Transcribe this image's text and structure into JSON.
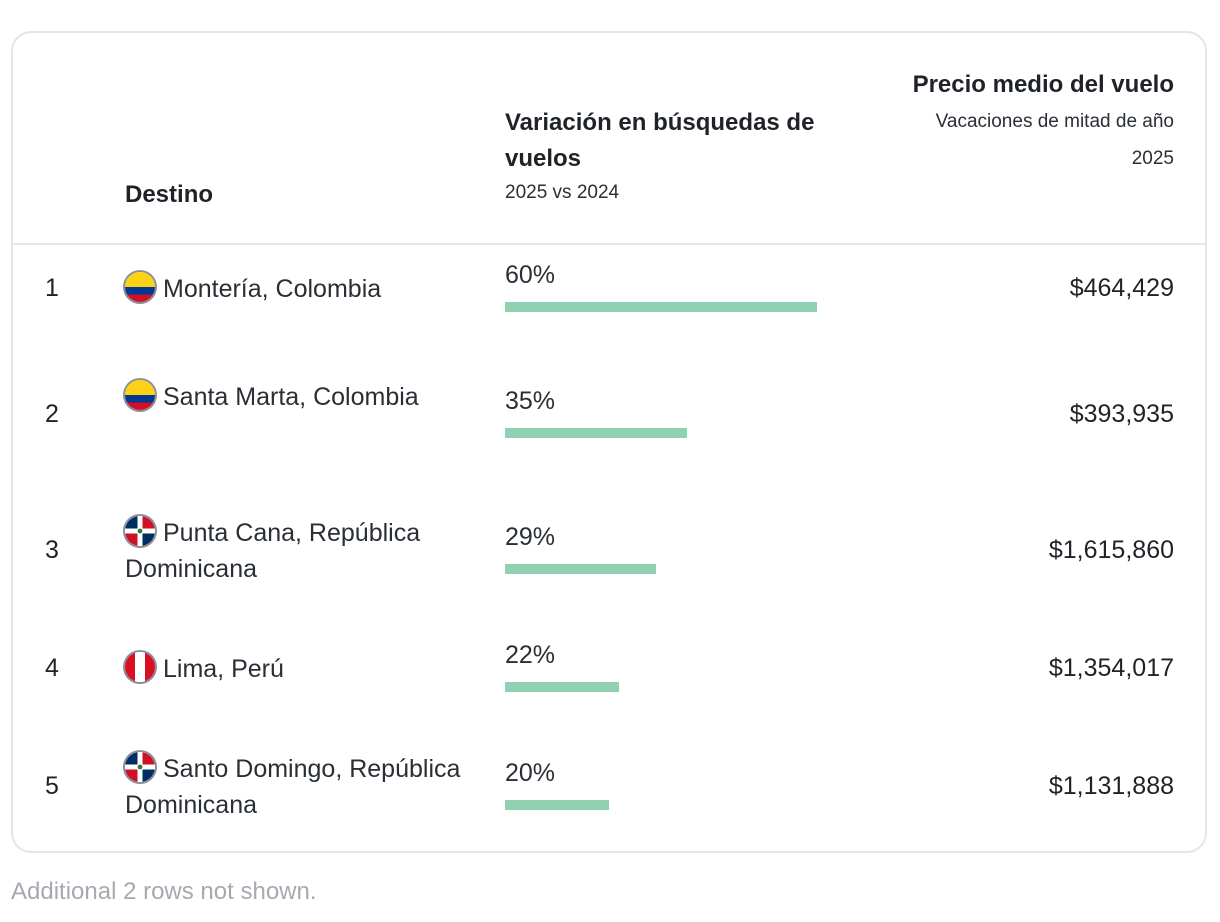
{
  "table": {
    "headers": {
      "destino": "Destino",
      "variation_title": "Variación en búsquedas de vuelos",
      "variation_sub": "2025 vs 2024",
      "price_title": "Precio medio del vuelo",
      "price_sub1": "Vacaciones de mitad de año",
      "price_sub2": "2025"
    },
    "rows": [
      {
        "rank": "1",
        "flag": "colombia-flag-icon",
        "dest": "Montería, Colombia",
        "pct": "60%",
        "pct_value": 60,
        "price": "$464,429"
      },
      {
        "rank": "2",
        "flag": "colombia-flag-icon",
        "dest": "Santa Marta, Colombia",
        "pct": "35%",
        "pct_value": 35,
        "price": "$393,935"
      },
      {
        "rank": "3",
        "flag": "dominican-republic-flag-icon",
        "dest": "Punta Cana, República Dominicana",
        "pct": "29%",
        "pct_value": 29,
        "price": "$1,615,860"
      },
      {
        "rank": "4",
        "flag": "peru-flag-icon",
        "dest": "Lima, Perú",
        "pct": "22%",
        "pct_value": 22,
        "price": "$1,354,017"
      },
      {
        "rank": "5",
        "flag": "dominican-republic-flag-icon",
        "dest": "Santo Domingo, República Dominicana",
        "pct": "20%",
        "pct_value": 20,
        "price": "$1,131,888"
      }
    ],
    "bar_color": "#8fd1b0"
  },
  "footnote": "Additional 2 rows not shown."
}
